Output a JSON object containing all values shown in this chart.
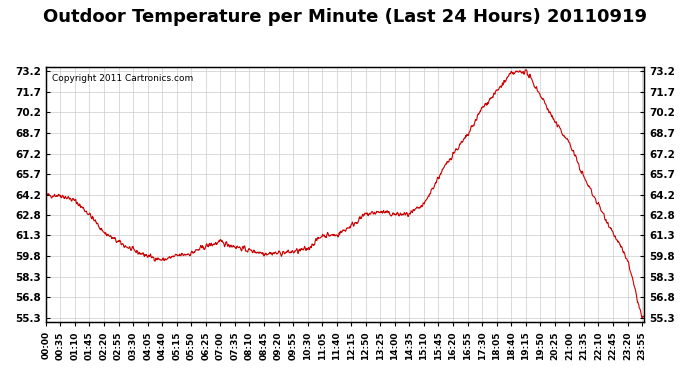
{
  "title": "Outdoor Temperature per Minute (Last 24 Hours) 20110919",
  "copyright_text": "Copyright 2011 Cartronics.com",
  "line_color": "#cc0000",
  "background_color": "#ffffff",
  "plot_bg_color": "#ffffff",
  "grid_color": "#cccccc",
  "title_fontsize": 13,
  "yticks": [
    55.3,
    56.8,
    58.3,
    59.8,
    61.3,
    62.8,
    64.2,
    65.7,
    67.2,
    68.7,
    70.2,
    71.7,
    73.2
  ],
  "ylim": [
    55.3,
    73.2
  ],
  "xtick_labels": [
    "00:00",
    "00:35",
    "01:10",
    "01:45",
    "02:20",
    "02:55",
    "03:30",
    "04:05",
    "04:40",
    "05:15",
    "05:50",
    "06:25",
    "07:00",
    "07:35",
    "08:10",
    "08:45",
    "09:20",
    "09:55",
    "10:30",
    "11:05",
    "11:40",
    "12:15",
    "12:50",
    "13:25",
    "14:00",
    "14:35",
    "15:10",
    "15:45",
    "16:20",
    "16:55",
    "17:30",
    "18:05",
    "18:40",
    "19:15",
    "19:50",
    "20:25",
    "21:00",
    "21:35",
    "22:10",
    "22:45",
    "23:20",
    "23:55"
  ],
  "key_points": {
    "0": 64.2,
    "35": 64.2,
    "70": 63.8,
    "105": 62.8,
    "140": 61.5,
    "175": 60.8,
    "210": 60.2,
    "245": 59.8,
    "280": 59.5,
    "315": 59.8,
    "350": 60.0,
    "385": 60.5,
    "420": 60.8,
    "455": 60.5,
    "490": 60.2,
    "525": 60.0,
    "560": 60.0,
    "595": 60.1,
    "630": 60.3,
    "665": 61.3,
    "700": 61.3,
    "735": 62.0,
    "770": 62.8,
    "805": 63.0,
    "840": 62.8,
    "875": 62.8,
    "910": 63.5,
    "945": 65.5,
    "980": 67.2,
    "1015": 68.5,
    "1050": 70.5,
    "1085": 71.7,
    "1120": 73.0,
    "1155": 73.2,
    "1190": 71.5,
    "1225": 69.5,
    "1260": 68.0,
    "1295": 65.5,
    "1330": 63.5,
    "1365": 61.5,
    "1400": 59.5,
    "1435": 55.3
  }
}
